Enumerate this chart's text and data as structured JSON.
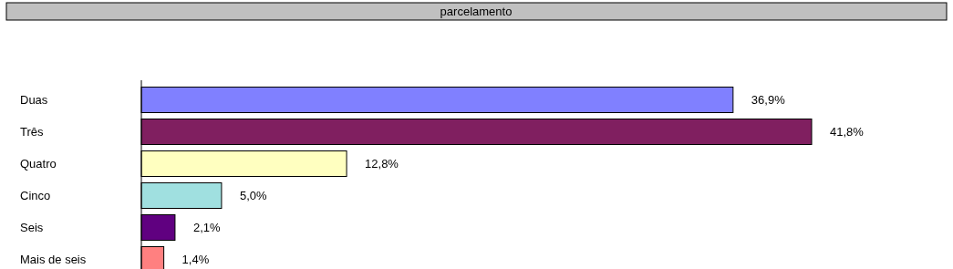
{
  "chart_data": {
    "type": "bar",
    "orientation": "horizontal",
    "title": "parcelamento",
    "categories": [
      "Duas",
      "Três",
      "Quatro",
      "Cinco",
      "Seis",
      "Mais de seis"
    ],
    "values": [
      36.9,
      41.8,
      12.8,
      5.0,
      2.1,
      1.4
    ],
    "colors": [
      "#8080ff",
      "#801f60",
      "#ffffc0",
      "#a0e0e0",
      "#600080",
      "#ff8080"
    ],
    "value_labels": [
      "36,9%",
      "41,8%",
      "12,8%",
      "5,0%",
      "2,1%",
      "1,4%"
    ]
  }
}
